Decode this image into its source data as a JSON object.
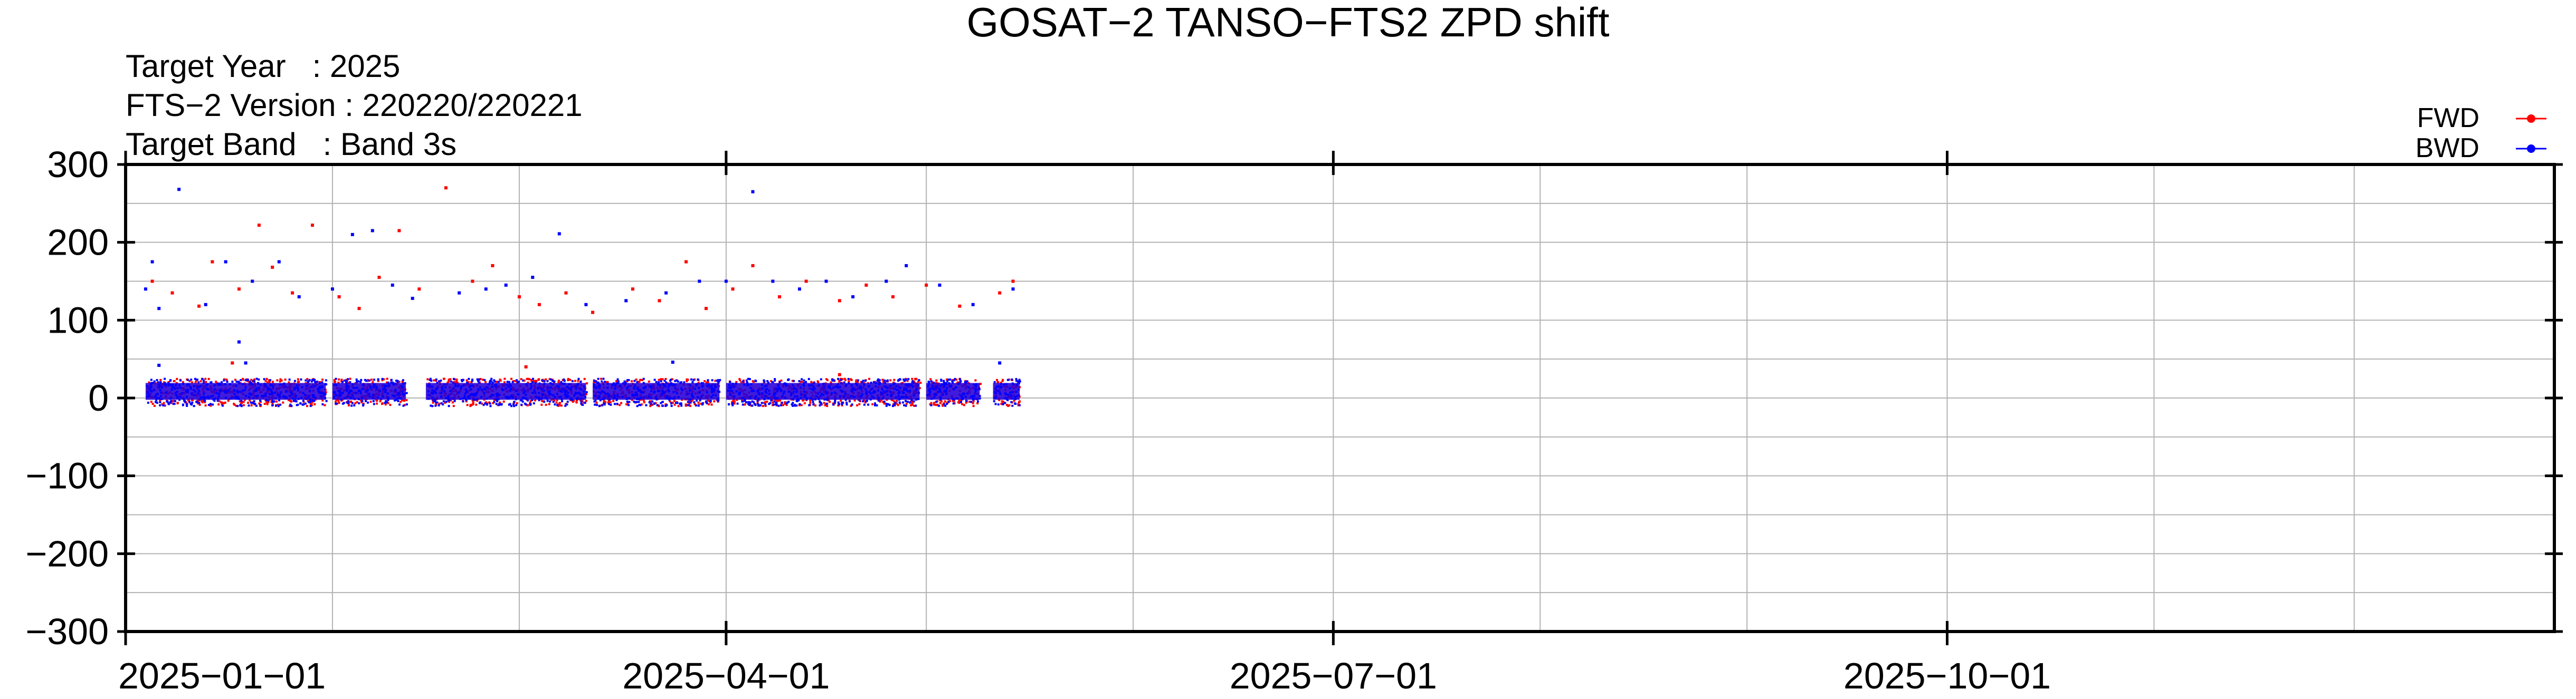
{
  "chart_data": {
    "type": "scatter",
    "title": "GOSAT−2 TANSO−FTS2 ZPD shift",
    "meta": {
      "year_label": "Target Year   : 2025",
      "version_label": "FTS−2 Version : 220220/220221",
      "band_label": "Target Band   : Band 3s"
    },
    "x_axis": {
      "type": "date",
      "range": [
        "2025-01-01",
        "2025-12-31"
      ],
      "labeled_ticks": [
        {
          "date": "2025-01-01",
          "label": "2025−01−01"
        },
        {
          "date": "2025-04-01",
          "label": "2025−04−01"
        },
        {
          "date": "2025-07-01",
          "label": "2025−07−01"
        },
        {
          "date": "2025-10-01",
          "label": "2025−10−01"
        }
      ],
      "minor_ticks": [
        "2025-02-01",
        "2025-03-01",
        "2025-05-01",
        "2025-06-01",
        "2025-08-01",
        "2025-09-01",
        "2025-11-01",
        "2025-12-01"
      ]
    },
    "y_axis": {
      "range": [
        -300,
        300
      ],
      "ticks": [
        {
          "value": 300,
          "label": "300"
        },
        {
          "value": 200,
          "label": "200"
        },
        {
          "value": 100,
          "label": "100"
        },
        {
          "value": 0,
          "label": "0"
        },
        {
          "value": -100,
          "label": "−100"
        },
        {
          "value": -200,
          "label": "−200"
        },
        {
          "value": -300,
          "label": "−300"
        }
      ],
      "minor_gridlines": [
        250,
        150,
        50,
        -50,
        -150,
        -250
      ]
    },
    "grid": true,
    "legend": {
      "position": "top-right"
    },
    "series": [
      {
        "name": "FWD",
        "color": "#ff0000",
        "main_cluster": {
          "y_min": -5,
          "y_max": 22
        },
        "segments": [
          {
            "start": "2025-01-04",
            "end": "2025-01-31"
          },
          {
            "start": "2025-02-01",
            "end": "2025-02-12"
          },
          {
            "start": "2025-02-15",
            "end": "2025-03-11"
          },
          {
            "start": "2025-03-12",
            "end": "2025-03-31"
          },
          {
            "start": "2025-04-01",
            "end": "2025-04-30"
          },
          {
            "start": "2025-05-01",
            "end": "2025-05-09"
          },
          {
            "start": "2025-05-11",
            "end": "2025-05-15"
          }
        ],
        "points": [
          {
            "x": "2025-01-05",
            "y": 150
          },
          {
            "x": "2025-01-08",
            "y": 135
          },
          {
            "x": "2025-01-12",
            "y": 118
          },
          {
            "x": "2025-01-14",
            "y": 175
          },
          {
            "x": "2025-01-18",
            "y": 140
          },
          {
            "x": "2025-01-21",
            "y": 222
          },
          {
            "x": "2025-01-23",
            "y": 168
          },
          {
            "x": "2025-01-26",
            "y": 135
          },
          {
            "x": "2025-01-29",
            "y": 222
          },
          {
            "x": "2025-02-02",
            "y": 130
          },
          {
            "x": "2025-02-05",
            "y": 115
          },
          {
            "x": "2025-02-08",
            "y": 155
          },
          {
            "x": "2025-02-11",
            "y": 215
          },
          {
            "x": "2025-02-14",
            "y": 140
          },
          {
            "x": "2025-02-18",
            "y": 270
          },
          {
            "x": "2025-02-22",
            "y": 150
          },
          {
            "x": "2025-02-25",
            "y": 170
          },
          {
            "x": "2025-03-01",
            "y": 130
          },
          {
            "x": "2025-03-04",
            "y": 120
          },
          {
            "x": "2025-03-08",
            "y": 135
          },
          {
            "x": "2025-03-12",
            "y": 110
          },
          {
            "x": "2025-03-18",
            "y": 140
          },
          {
            "x": "2025-03-22",
            "y": 125
          },
          {
            "x": "2025-03-26",
            "y": 175
          },
          {
            "x": "2025-03-29",
            "y": 115
          },
          {
            "x": "2025-04-02",
            "y": 140
          },
          {
            "x": "2025-04-05",
            "y": 170
          },
          {
            "x": "2025-04-09",
            "y": 130
          },
          {
            "x": "2025-04-13",
            "y": 150
          },
          {
            "x": "2025-04-18",
            "y": 125
          },
          {
            "x": "2025-04-22",
            "y": 145
          },
          {
            "x": "2025-04-26",
            "y": 130
          },
          {
            "x": "2025-05-01",
            "y": 145
          },
          {
            "x": "2025-05-06",
            "y": 118
          },
          {
            "x": "2025-05-12",
            "y": 135
          },
          {
            "x": "2025-05-14",
            "y": 150
          },
          {
            "x": "2025-01-17",
            "y": 45
          },
          {
            "x": "2025-03-02",
            "y": 40
          },
          {
            "x": "2025-04-18",
            "y": 30
          }
        ]
      },
      {
        "name": "BWD",
        "color": "#0000ff",
        "main_cluster": {
          "y_min": -5,
          "y_max": 22
        },
        "segments": [
          {
            "start": "2025-01-04",
            "end": "2025-01-31"
          },
          {
            "start": "2025-02-01",
            "end": "2025-02-12"
          },
          {
            "start": "2025-02-15",
            "end": "2025-03-11"
          },
          {
            "start": "2025-03-12",
            "end": "2025-03-31"
          },
          {
            "start": "2025-04-01",
            "end": "2025-04-30"
          },
          {
            "start": "2025-05-01",
            "end": "2025-05-09"
          },
          {
            "start": "2025-05-11",
            "end": "2025-05-15"
          }
        ],
        "points": [
          {
            "x": "2025-01-04",
            "y": 140
          },
          {
            "x": "2025-01-05",
            "y": 175
          },
          {
            "x": "2025-01-06",
            "y": 115
          },
          {
            "x": "2025-01-09",
            "y": 268
          },
          {
            "x": "2025-01-13",
            "y": 120
          },
          {
            "x": "2025-01-16",
            "y": 175
          },
          {
            "x": "2025-01-20",
            "y": 150
          },
          {
            "x": "2025-01-24",
            "y": 175
          },
          {
            "x": "2025-01-27",
            "y": 130
          },
          {
            "x": "2025-02-01",
            "y": 140
          },
          {
            "x": "2025-02-04",
            "y": 210
          },
          {
            "x": "2025-02-07",
            "y": 215
          },
          {
            "x": "2025-02-10",
            "y": 145
          },
          {
            "x": "2025-02-13",
            "y": 128
          },
          {
            "x": "2025-02-20",
            "y": 135
          },
          {
            "x": "2025-02-24",
            "y": 140
          },
          {
            "x": "2025-02-27",
            "y": 145
          },
          {
            "x": "2025-03-03",
            "y": 155
          },
          {
            "x": "2025-03-07",
            "y": 211
          },
          {
            "x": "2025-03-11",
            "y": 120
          },
          {
            "x": "2025-03-17",
            "y": 125
          },
          {
            "x": "2025-03-23",
            "y": 135
          },
          {
            "x": "2025-03-28",
            "y": 150
          },
          {
            "x": "2025-04-01",
            "y": 150
          },
          {
            "x": "2025-04-05",
            "y": 265
          },
          {
            "x": "2025-04-08",
            "y": 150
          },
          {
            "x": "2025-04-12",
            "y": 140
          },
          {
            "x": "2025-04-16",
            "y": 150
          },
          {
            "x": "2025-04-20",
            "y": 130
          },
          {
            "x": "2025-04-25",
            "y": 150
          },
          {
            "x": "2025-04-28",
            "y": 170
          },
          {
            "x": "2025-05-03",
            "y": 145
          },
          {
            "x": "2025-05-08",
            "y": 120
          },
          {
            "x": "2025-05-14",
            "y": 140
          },
          {
            "x": "2025-01-18",
            "y": 72
          },
          {
            "x": "2025-01-19",
            "y": 45
          },
          {
            "x": "2025-01-06",
            "y": 42
          },
          {
            "x": "2025-03-24",
            "y": 46
          },
          {
            "x": "2025-05-12",
            "y": 45
          }
        ]
      }
    ]
  }
}
